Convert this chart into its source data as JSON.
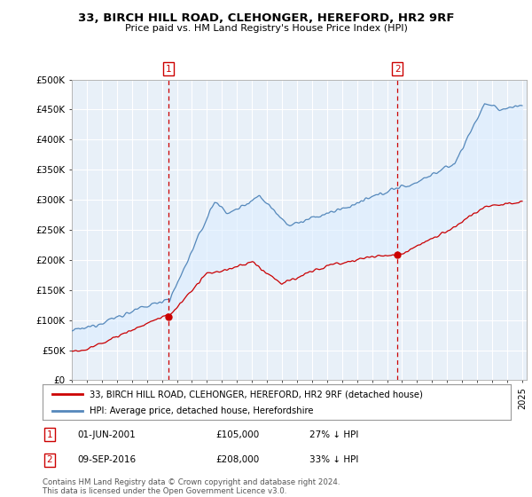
{
  "title": "33, BIRCH HILL ROAD, CLEHONGER, HEREFORD, HR2 9RF",
  "subtitle": "Price paid vs. HM Land Registry's House Price Index (HPI)",
  "ylabel_ticks": [
    "£0",
    "£50K",
    "£100K",
    "£150K",
    "£200K",
    "£250K",
    "£300K",
    "£350K",
    "£400K",
    "£450K",
    "£500K"
  ],
  "ytick_values": [
    0,
    50000,
    100000,
    150000,
    200000,
    250000,
    300000,
    350000,
    400000,
    450000,
    500000
  ],
  "ylim": [
    0,
    500000
  ],
  "house_color": "#cc0000",
  "hpi_color": "#5588bb",
  "hpi_fill_color": "#ddeeff",
  "marker1_date": 2001.42,
  "marker1_price": 105000,
  "marker2_date": 2016.69,
  "marker2_price": 208000,
  "legend_house": "33, BIRCH HILL ROAD, CLEHONGER, HEREFORD, HR2 9RF (detached house)",
  "legend_hpi": "HPI: Average price, detached house, Herefordshire",
  "footnote": "Contains HM Land Registry data © Crown copyright and database right 2024.\nThis data is licensed under the Open Government Licence v3.0.",
  "background_color": "#ffffff",
  "plot_bg_color": "#e8f0f8",
  "grid_color": "#ffffff"
}
